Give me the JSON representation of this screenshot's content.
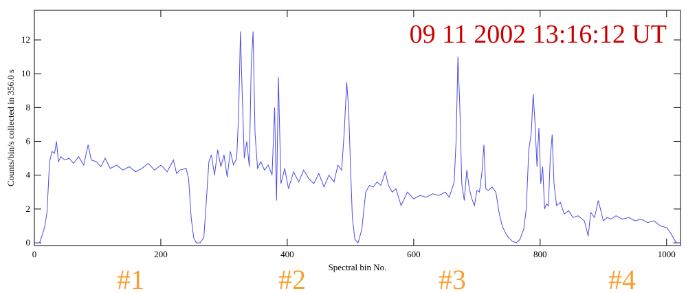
{
  "chart_data": {
    "type": "line",
    "title": "09 11 2002   13:16:12 UT",
    "x_label": "Spectral bin No.",
    "y_label": "Counts/bin/s collected in   356.0 s",
    "annotations": [
      "#1",
      "#2",
      "#3",
      "#4"
    ],
    "xlim": [
      0,
      1022
    ],
    "ylim": [
      -0.16,
      13.75
    ],
    "xticks": [
      0,
      200,
      400,
      600,
      800,
      1000
    ],
    "yticks": [
      0,
      2,
      4,
      6,
      8,
      10,
      12
    ],
    "x": [
      0,
      8,
      12,
      16,
      20,
      24,
      28,
      32,
      35,
      38,
      42,
      48,
      55,
      62,
      70,
      78,
      85,
      90,
      98,
      105,
      112,
      120,
      130,
      140,
      150,
      160,
      170,
      180,
      190,
      200,
      210,
      220,
      225,
      230,
      240,
      244,
      248,
      252,
      256,
      262,
      268,
      272,
      276,
      280,
      285,
      290,
      295,
      300,
      305,
      310,
      315,
      320,
      323,
      326,
      329,
      332,
      336,
      340,
      343,
      346,
      349,
      353,
      358,
      364,
      370,
      376,
      380,
      383,
      386,
      390,
      396,
      402,
      410,
      418,
      426,
      434,
      442,
      450,
      458,
      466,
      474,
      480,
      486,
      490,
      494,
      497,
      500,
      503,
      507,
      512,
      518,
      524,
      530,
      536,
      542,
      548,
      555,
      560,
      566,
      572,
      580,
      590,
      600,
      610,
      620,
      630,
      640,
      650,
      656,
      660,
      664,
      667,
      670,
      673,
      676,
      680,
      684,
      688,
      692,
      696,
      700,
      704,
      708,
      711,
      714,
      718,
      724,
      730,
      735,
      740,
      745,
      750,
      756,
      762,
      768,
      774,
      778,
      782,
      786,
      789,
      792,
      795,
      798,
      801,
      804,
      807,
      810,
      813,
      816,
      819,
      822,
      826,
      832,
      838,
      845,
      852,
      860,
      870,
      876,
      880,
      886,
      892,
      900,
      906,
      912,
      920,
      930,
      940,
      950,
      960,
      970,
      980,
      990,
      1000,
      1006,
      1012,
      1016,
      1022
    ],
    "series": [
      {
        "color": "#4a4ae6",
        "values": [
          0,
          0,
          0.4,
          0.9,
          1.8,
          4.8,
          5.4,
          5.3,
          6.0,
          4.8,
          5.1,
          4.9,
          5.0,
          4.7,
          5.1,
          4.6,
          5.8,
          4.9,
          4.8,
          4.5,
          5.0,
          4.4,
          4.6,
          4.3,
          4.5,
          4.2,
          4.4,
          4.7,
          4.3,
          4.6,
          4.2,
          4.9,
          4.1,
          4.3,
          4.4,
          3.8,
          1.5,
          0.3,
          0,
          0,
          0.3,
          2.5,
          4.8,
          5.2,
          4.0,
          5.5,
          4.5,
          5.2,
          3.9,
          5.4,
          4.6,
          5.0,
          7.5,
          12.5,
          8.5,
          5.0,
          6.0,
          4.5,
          10.5,
          12.5,
          6.5,
          4.4,
          4.8,
          4.3,
          4.6,
          4.0,
          8.0,
          2.5,
          9.8,
          3.5,
          4.4,
          3.2,
          4.2,
          3.6,
          4.3,
          3.8,
          3.5,
          4.1,
          3.3,
          4.0,
          3.6,
          4.6,
          4.3,
          6.5,
          9.5,
          8.0,
          4.5,
          1.5,
          0.2,
          0,
          0.8,
          3.0,
          3.4,
          3.3,
          3.6,
          3.4,
          4.2,
          3.4,
          3.0,
          3.2,
          2.2,
          3.0,
          2.6,
          2.8,
          2.7,
          2.9,
          2.8,
          3.0,
          2.7,
          3.1,
          3.6,
          6.0,
          11.0,
          8.0,
          3.5,
          2.5,
          4.3,
          3.2,
          2.6,
          2.2,
          3.1,
          3.0,
          4.2,
          5.8,
          3.2,
          3.1,
          3.3,
          3.0,
          1.8,
          1.0,
          0.6,
          0.3,
          0.1,
          0,
          0.2,
          0.8,
          2.0,
          5.5,
          6.5,
          8.8,
          7.0,
          4.5,
          6.8,
          3.5,
          4.5,
          2.0,
          2.3,
          2.2,
          5.0,
          6.4,
          3.5,
          2.2,
          2.4,
          1.7,
          1.9,
          1.5,
          1.6,
          1.3,
          0.4,
          1.8,
          1.5,
          2.5,
          1.3,
          1.5,
          1.4,
          1.6,
          1.4,
          1.5,
          1.3,
          1.4,
          1.2,
          1.3,
          1.0,
          0.9,
          0.6,
          0.2,
          0,
          0
        ]
      }
    ]
  }
}
